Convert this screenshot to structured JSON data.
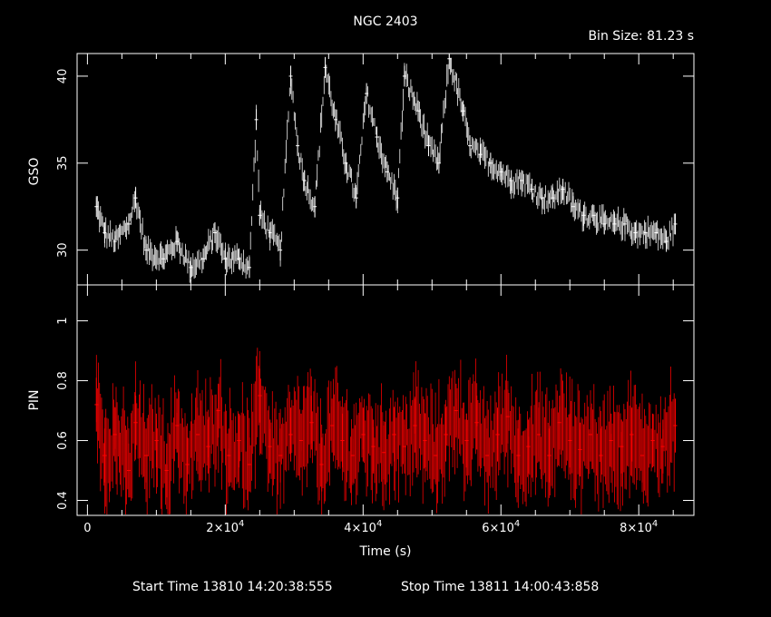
{
  "header": {
    "title": "NGC 2403",
    "bin_size": "Bin Size: 81.23 s"
  },
  "footer": {
    "start_time": "Start Time 13810 14:20:38:555",
    "stop_time": "Stop Time 13811 14:00:43:858"
  },
  "colors": {
    "background": "#000000",
    "frame": "#ffffff",
    "gso_series": "#ffffff",
    "pin_series": "#ff0000"
  },
  "chart_data": {
    "type": "line",
    "title": "NGC 2403",
    "xlabel": "Time (s)",
    "xlim": [
      -1500,
      88000
    ],
    "x_ticks": [
      {
        "value": 0,
        "base": "0",
        "exp": ""
      },
      {
        "value": 20000,
        "base": "2×10",
        "exp": "4"
      },
      {
        "value": 40000,
        "base": "4×10",
        "exp": "4"
      },
      {
        "value": 60000,
        "base": "6×10",
        "exp": "4"
      },
      {
        "value": 80000,
        "base": "8×10",
        "exp": "4"
      }
    ],
    "panels": [
      {
        "name": "GSO",
        "ylabel": "GSO",
        "ylim": [
          28,
          41.3
        ],
        "y_ticks": [
          30,
          35,
          40
        ],
        "y_tick_labels": [
          "30",
          "35",
          "40"
        ],
        "error_bars": true,
        "series": [
          {
            "x": [
              1300,
              2500,
              4000,
              6000,
              7000,
              8500,
              11000,
              13000,
              15000,
              16800,
              18500,
              20000,
              22000,
              23500,
              24500,
              25000,
              26500,
              28000,
              29500,
              30500,
              31500,
              33000,
              34500,
              36000,
              37500,
              39000,
              40500,
              42000,
              43500,
              45000,
              46000,
              48000,
              49500,
              51000,
              52500,
              54500,
              55500,
              57000,
              58500,
              60000,
              61500,
              63000,
              64500,
              66000,
              67500,
              69000,
              70500,
              72000,
              73500,
              75000,
              76500,
              78000,
              79500,
              81000,
              82500,
              84000,
              85300
            ],
            "y": [
              32.5,
              31.0,
              30.5,
              31.5,
              33.0,
              30.0,
              29.5,
              30.5,
              29.0,
              29.5,
              31.0,
              29.5,
              29.5,
              29.0,
              37.5,
              32.0,
              31.0,
              30.0,
              40.0,
              36.0,
              34.0,
              32.5,
              40.5,
              37.5,
              35.0,
              33.0,
              39.0,
              36.5,
              34.5,
              33.0,
              40.0,
              38.0,
              36.0,
              35.0,
              41.0,
              38.0,
              36.0,
              35.5,
              35.0,
              34.5,
              34.0,
              34.0,
              33.5,
              33.0,
              33.0,
              33.5,
              32.5,
              32.0,
              32.0,
              31.5,
              31.5,
              31.5,
              31.0,
              31.0,
              31.0,
              30.5,
              31.5
            ]
          }
        ]
      },
      {
        "name": "PIN",
        "ylabel": "PIN",
        "ylim": [
          0.35,
          1.12
        ],
        "y_ticks": [
          0.4,
          0.6,
          0.8,
          1.0
        ],
        "y_tick_labels": [
          "0.4",
          "0.6",
          "0.8",
          "1"
        ],
        "error_bars": true,
        "series": [
          {
            "x": [
              1300,
              2500,
              4000,
              6000,
              7000,
              8500,
              10000,
              11500,
              13000,
              14500,
              16000,
              17500,
              19000,
              20500,
              22000,
              23500,
              25000,
              26500,
              28000,
              29500,
              31000,
              32500,
              34000,
              35500,
              37000,
              38500,
              40000,
              41500,
              43000,
              44500,
              46000,
              47500,
              49000,
              50500,
              52000,
              53500,
              55000,
              56500,
              58000,
              59500,
              61000,
              62500,
              64000,
              65500,
              67000,
              68500,
              70000,
              71500,
              73000,
              74500,
              76000,
              77500,
              79000,
              80500,
              82000,
              83500,
              85300
            ],
            "y": [
              0.72,
              0.55,
              0.62,
              0.5,
              0.66,
              0.55,
              0.6,
              0.5,
              0.65,
              0.52,
              0.62,
              0.58,
              0.7,
              0.55,
              0.6,
              0.52,
              0.75,
              0.58,
              0.55,
              0.62,
              0.6,
              0.66,
              0.52,
              0.65,
              0.6,
              0.55,
              0.62,
              0.58,
              0.56,
              0.62,
              0.58,
              0.65,
              0.6,
              0.55,
              0.62,
              0.7,
              0.6,
              0.66,
              0.55,
              0.62,
              0.68,
              0.55,
              0.58,
              0.62,
              0.55,
              0.66,
              0.6,
              0.57,
              0.62,
              0.55,
              0.6,
              0.58,
              0.62,
              0.55,
              0.6,
              0.58,
              0.65
            ]
          }
        ]
      }
    ]
  }
}
